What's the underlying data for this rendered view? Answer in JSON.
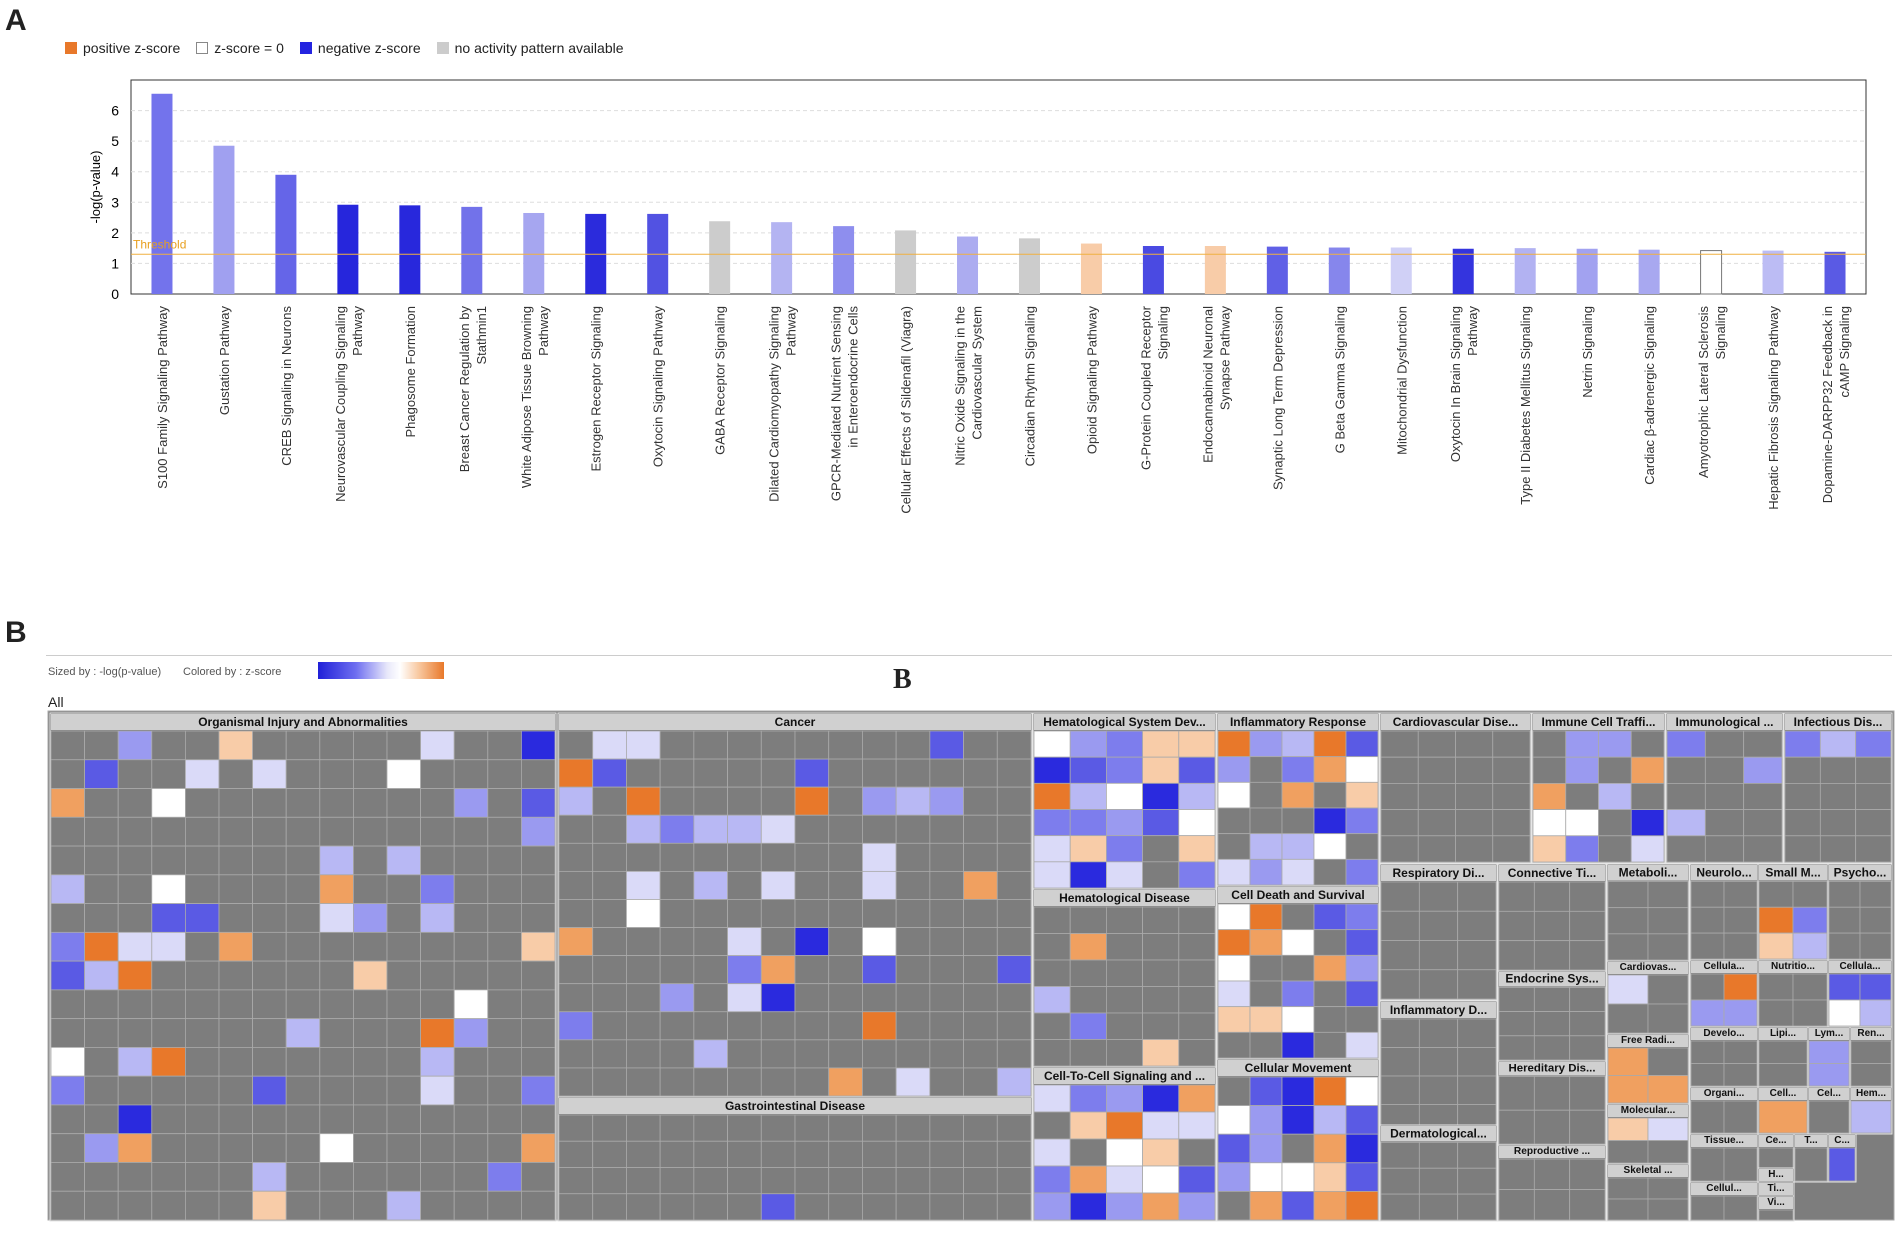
{
  "panel_labels": {
    "a": "A",
    "b": "B"
  },
  "colors": {
    "positive": "#e8782a",
    "zero": "#ffffff",
    "negative": "#2424e0",
    "na": "#cccccc",
    "threshold": "#f0b040",
    "tile_bg": "#7d7d7d",
    "header_bg": "#d0d0d0"
  },
  "legend_a": [
    {
      "label": "positive z-score",
      "color": "#e8782a"
    },
    {
      "label": "z-score = 0",
      "color": "#ffffff"
    },
    {
      "label": "negative z-score",
      "color": "#2424e0"
    },
    {
      "label": "no activity pattern available",
      "color": "#cccccc"
    }
  ],
  "chart_data": {
    "type": "bar",
    "ylabel": "-log(p-value)",
    "ylim": [
      0,
      7
    ],
    "yticks": [
      0,
      1,
      2,
      3,
      4,
      5,
      6
    ],
    "threshold": {
      "label": "Threshold",
      "value": 1.3
    },
    "categories": [
      [
        "S100 Family Signaling Pathway"
      ],
      [
        "Gustation Pathway"
      ],
      [
        "CREB Signaling in Neurons"
      ],
      [
        "Neurovascular Coupling Signaling",
        "Pathway"
      ],
      [
        "Phagosome Formation"
      ],
      [
        "Breast Cancer Regulation by",
        "Stathmin1"
      ],
      [
        "White Adipose Tissue Browning",
        "Pathway"
      ],
      [
        "Estrogen Receptor Signaling"
      ],
      [
        "Oxytocin Signaling Pathway"
      ],
      [
        "GABA Receptor Signaling"
      ],
      [
        "Dilated Cardiomyopathy Signaling",
        "Pathway"
      ],
      [
        "GPCR-Mediated Nutrient Sensing",
        "in Enteroendocrine Cells"
      ],
      [
        "Cellular Effects of Sildenafil (Viagra)"
      ],
      [
        "Nitric Oxide Signaling in the",
        "Cardiovascular System"
      ],
      [
        "Circadian Rhythm Signaling"
      ],
      [
        "Opioid Signaling Pathway"
      ],
      [
        "G-Protein Coupled Receptor",
        "Signaling"
      ],
      [
        "Endocannabinoid Neuronal",
        "Synapse Pathway"
      ],
      [
        "Synaptic Long Term Depression"
      ],
      [
        "G Beta Gamma Signaling"
      ],
      [
        "Mitochondrial Dysfunction"
      ],
      [
        "Oxytocin In Brain Signaling",
        "Pathway"
      ],
      [
        "Type II Diabetes Mellitus Signaling"
      ],
      [
        "Netrin Signaling"
      ],
      [
        "Cardiac β-adrenergic Signaling"
      ],
      [
        "Amyotrophic Lateral Sclerosis",
        "Signaling"
      ],
      [
        "Hepatic Fibrosis Signaling Pathway"
      ],
      [
        "Dopamine-DARPP32 Feedback in",
        "cAMP Signaling"
      ]
    ],
    "values": [
      6.55,
      4.85,
      3.9,
      2.92,
      2.9,
      2.85,
      2.65,
      2.62,
      2.62,
      2.38,
      2.35,
      2.22,
      2.08,
      1.88,
      1.82,
      1.65,
      1.57,
      1.57,
      1.55,
      1.52,
      1.52,
      1.48,
      1.5,
      1.48,
      1.45,
      1.42,
      1.42,
      1.38
    ],
    "bar_colors": [
      "#7373ec",
      "#a0a0f0",
      "#6565e8",
      "#2626dc",
      "#2828dc",
      "#7272ea",
      "#a6a6f0",
      "#2b2bdc",
      "#5252e2",
      "#cccccc",
      "#b4b4f2",
      "#8e8eee",
      "#cccccc",
      "#acacf0",
      "#cccccc",
      "#f8cca8",
      "#4a4ae2",
      "#f8cca8",
      "#6060e6",
      "#8686ec",
      "#d0d0f6",
      "#3434de",
      "#b2b2f2",
      "#a2a2f0",
      "#a8a8f0",
      "#ffffff",
      "#bcbcf4",
      "#5a5ae4"
    ]
  },
  "treemap": {
    "sized_by": "Sized by : -log(p-value)",
    "colored_by": "Colored by : z-score",
    "title": "B",
    "all_label": "All",
    "categories": [
      "Organismal Injury and Abnormalities",
      "Cancer",
      "Gastrointestinal Disease",
      "Hematological System Dev...",
      "Hematological Disease",
      "Cell-To-Cell Signaling and ...",
      "Inflammatory Response",
      "Cell Death and Survival",
      "Cellular Movement",
      "Cardiovascular Dise...",
      "Respiratory Di...",
      "Inflammatory D...",
      "Dermatological...",
      "Immune Cell Traffi...",
      "Immunological ...",
      "Infectious Dis...",
      "Connective Ti...",
      "Endocrine Sys...",
      "Hereditary Dis...",
      "Reproductive ...",
      "Metaboli...",
      "Cardiovas...",
      "Free Radi...",
      "Molecular...",
      "Skeletal ...",
      "Neurolo...",
      "Cellula...",
      "Develo...",
      "Organi...",
      "Tissue...",
      "Cellul...",
      "Small M...",
      "Nutritio...",
      "Lipi...",
      "Cell...",
      "Ce...",
      "H...",
      "Ti...",
      "Vi...",
      "Psycho...",
      "Cellula...",
      "Lym...",
      "Ren...",
      "Cel...",
      "Hem...",
      "T...",
      "C..."
    ]
  }
}
